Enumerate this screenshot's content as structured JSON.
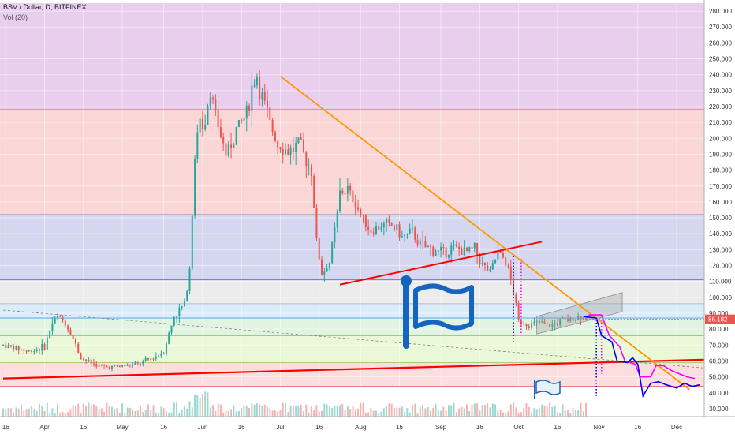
{
  "header": {
    "symbol_line": "BSV / Dollar, D, BITFINEX",
    "indicator_line": "Vol (20)"
  },
  "colors": {
    "up_candle": "#26a69a",
    "down_candle": "#ef5350",
    "trend_orange": "#ff9800",
    "trend_red": "#ff0000",
    "flag_blue": "#1565c0",
    "projection_blue": "#0000ff",
    "projection_magenta": "#ff00ff",
    "current_price_badge": "#ef5350"
  },
  "chart_data": {
    "type": "candlestick",
    "ylim": [
      25,
      285
    ],
    "xlim": [
      0,
      260
    ],
    "y_ticks": [
      {
        "value": 280,
        "label": "280.000"
      },
      {
        "value": 270,
        "label": "270.000"
      },
      {
        "value": 260,
        "label": "260.000"
      },
      {
        "value": 250,
        "label": "250.000"
      },
      {
        "value": 240,
        "label": "240.000"
      },
      {
        "value": 230,
        "label": "230.000"
      },
      {
        "value": 220,
        "label": "220.000"
      },
      {
        "value": 210,
        "label": "210.000"
      },
      {
        "value": 200,
        "label": "200.000"
      },
      {
        "value": 190,
        "label": "190.000"
      },
      {
        "value": 180,
        "label": "180.000"
      },
      {
        "value": 170,
        "label": "170.000"
      },
      {
        "value": 160,
        "label": "160.000"
      },
      {
        "value": 150,
        "label": "150.000"
      },
      {
        "value": 140,
        "label": "140.000"
      },
      {
        "value": 130,
        "label": "130.000"
      },
      {
        "value": 120,
        "label": "120.000"
      },
      {
        "value": 110,
        "label": "110.000"
      },
      {
        "value": 100,
        "label": "100.000"
      },
      {
        "value": 90,
        "label": "90.000"
      },
      {
        "value": 80,
        "label": "80.000"
      },
      {
        "value": 70,
        "label": "70.000"
      },
      {
        "value": 60,
        "label": "60.000"
      },
      {
        "value": 50,
        "label": "50.000"
      },
      {
        "value": 40,
        "label": "40.000"
      },
      {
        "value": 30,
        "label": "30.000"
      }
    ],
    "x_ticks": [
      {
        "day": 1,
        "label": "16"
      },
      {
        "day": 16,
        "label": "Apr"
      },
      {
        "day": 31,
        "label": "16"
      },
      {
        "day": 46,
        "label": "May"
      },
      {
        "day": 62,
        "label": "16"
      },
      {
        "day": 77,
        "label": "Jun"
      },
      {
        "day": 92,
        "label": "16"
      },
      {
        "day": 107,
        "label": "Jul"
      },
      {
        "day": 122,
        "label": "16"
      },
      {
        "day": 138,
        "label": "Aug"
      },
      {
        "day": 153,
        "label": "16"
      },
      {
        "day": 169,
        "label": "Sep"
      },
      {
        "day": 184,
        "label": "16"
      },
      {
        "day": 199,
        "label": "Oct"
      },
      {
        "day": 214,
        "label": "16"
      },
      {
        "day": 230,
        "label": "Nov"
      },
      {
        "day": 245,
        "label": "16"
      },
      {
        "day": 260,
        "label": "Dec"
      }
    ],
    "current_price": {
      "value": 86.182,
      "label": "86.182"
    },
    "zones": [
      {
        "from": 218,
        "to": 285,
        "color": "#e1bee7"
      },
      {
        "from": 152,
        "to": 218,
        "color": "#f8c8c8"
      },
      {
        "from": 111,
        "to": 152,
        "color": "#c5cae9"
      },
      {
        "from": 96,
        "to": 111,
        "color": "#e6e6e6"
      },
      {
        "from": 87,
        "to": 96,
        "color": "#cfe6f5"
      },
      {
        "from": 76,
        "to": 87,
        "color": "#d7f0d7"
      },
      {
        "from": 59,
        "to": 76,
        "color": "#e2f5c8"
      },
      {
        "from": 44,
        "to": 59,
        "color": "#fbd3d3"
      },
      {
        "from": 25,
        "to": 44,
        "color": "#ffffff"
      }
    ],
    "key_levels": [
      218,
      152,
      111,
      96,
      87,
      76,
      59,
      44
    ],
    "close_path": [
      [
        0,
        70
      ],
      [
        10,
        66
      ],
      [
        16,
        69
      ],
      [
        19,
        84
      ],
      [
        21,
        88
      ],
      [
        24,
        84
      ],
      [
        27,
        74
      ],
      [
        30,
        62
      ],
      [
        35,
        58
      ],
      [
        40,
        56
      ],
      [
        47,
        57
      ],
      [
        52,
        58
      ],
      [
        58,
        62
      ],
      [
        62,
        66
      ],
      [
        66,
        88
      ],
      [
        70,
        96
      ],
      [
        72,
        118
      ],
      [
        74,
        190
      ],
      [
        76,
        210
      ],
      [
        78,
        212
      ],
      [
        80,
        230
      ],
      [
        83,
        208
      ],
      [
        86,
        190
      ],
      [
        90,
        205
      ],
      [
        94,
        215
      ],
      [
        96,
        232
      ],
      [
        98,
        240
      ],
      [
        100,
        225
      ],
      [
        103,
        210
      ],
      [
        106,
        196
      ],
      [
        110,
        192
      ],
      [
        114,
        195
      ],
      [
        116,
        190
      ],
      [
        119,
        180
      ],
      [
        121,
        135
      ],
      [
        123,
        115
      ],
      [
        126,
        122
      ],
      [
        128,
        142
      ],
      [
        130,
        165
      ],
      [
        133,
        168
      ],
      [
        136,
        160
      ],
      [
        139,
        148
      ],
      [
        142,
        142
      ],
      [
        146,
        145
      ],
      [
        150,
        145
      ],
      [
        154,
        138
      ],
      [
        158,
        140
      ],
      [
        162,
        132
      ],
      [
        166,
        130
      ],
      [
        170,
        128
      ],
      [
        174,
        132
      ],
      [
        178,
        128
      ],
      [
        182,
        131
      ],
      [
        185,
        120
      ],
      [
        188,
        116
      ],
      [
        191,
        128
      ],
      [
        193,
        125
      ],
      [
        195,
        118
      ],
      [
        197,
        104
      ],
      [
        199,
        85
      ],
      [
        203,
        83
      ],
      [
        207,
        84
      ],
      [
        211,
        82
      ],
      [
        215,
        85
      ],
      [
        219,
        86
      ],
      [
        223,
        88
      ],
      [
        225,
        86.182
      ]
    ],
    "annotations": {
      "orange_resistance": [
        [
          107,
          239
        ],
        [
          265,
          42
        ]
      ],
      "red_support_long": [
        [
          0,
          49
        ],
        [
          275,
          61
        ]
      ],
      "red_triangle_base": [
        [
          130,
          108
        ],
        [
          208,
          135
        ]
      ],
      "dashed_trend": [
        [
          0,
          92
        ],
        [
          275,
          55
        ]
      ],
      "channel_upper": [
        [
          206,
          88
        ],
        [
          239,
          103
        ]
      ],
      "channel_lower": [
        [
          206,
          77
        ],
        [
          239,
          91
        ]
      ],
      "blue_projection": [
        [
          224,
          88
        ],
        [
          229,
          87
        ],
        [
          231,
          76
        ],
        [
          235,
          72
        ],
        [
          237,
          60
        ],
        [
          241,
          59
        ],
        [
          243,
          62
        ],
        [
          245,
          58
        ],
        [
          247,
          38
        ],
        [
          250,
          46
        ],
        [
          253,
          47
        ],
        [
          256,
          45
        ],
        [
          260,
          43
        ],
        [
          263,
          46
        ],
        [
          266,
          44
        ],
        [
          269,
          45
        ]
      ],
      "magenta_projection": [
        [
          226,
          89
        ],
        [
          231,
          89
        ],
        [
          234,
          76
        ],
        [
          238,
          69
        ],
        [
          240,
          60
        ],
        [
          244,
          58
        ],
        [
          246,
          50
        ],
        [
          250,
          50
        ],
        [
          252,
          57
        ],
        [
          255,
          57
        ],
        [
          258,
          54
        ],
        [
          261,
          52
        ],
        [
          264,
          50
        ],
        [
          267,
          49
        ]
      ],
      "dotted_drop_1": [
        [
          197,
          126
        ],
        [
          197,
          72
        ]
      ],
      "dotted_drop_2": [
        [
          200,
          124
        ],
        [
          200,
          76
        ]
      ],
      "dotted_drop_3": [
        [
          229,
          86
        ],
        [
          229,
          38
        ]
      ],
      "dotted_drop_4": [
        [
          231,
          86
        ],
        [
          231,
          52
        ]
      ]
    }
  }
}
